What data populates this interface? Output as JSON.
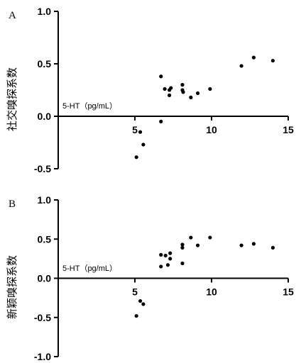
{
  "chart_data": [
    {
      "type": "scatter",
      "panel_label": "A",
      "ylabel": "社交嗅探系数",
      "xunit_label": "5-HT（pg/mL）",
      "xlim": [
        0,
        15
      ],
      "ylim": [
        -0.5,
        1.0
      ],
      "xticks": [
        "5",
        "10",
        "15"
      ],
      "yticks": [
        "1.0",
        "0.5",
        "0.0",
        "-0.5"
      ],
      "ytick_values": [
        1.0,
        0.5,
        0.0,
        -0.5
      ],
      "xtick_values": [
        5,
        10,
        15
      ],
      "series": [
        {
          "x": [
            5.1,
            5.35,
            5.55,
            6.7,
            6.7,
            6.95,
            7.25,
            7.35,
            7.25,
            8.1,
            8.1,
            8.15,
            8.65,
            9.1,
            9.9,
            11.95,
            12.75,
            14.0
          ],
          "y": [
            -0.39,
            -0.15,
            -0.27,
            0.38,
            -0.05,
            0.26,
            0.25,
            0.27,
            0.2,
            0.3,
            0.25,
            0.23,
            0.18,
            0.22,
            0.26,
            0.48,
            0.56,
            0.53
          ]
        }
      ]
    },
    {
      "type": "scatter",
      "panel_label": "B",
      "ylabel": "新颖嗅探系数",
      "xunit_label": "5-HT（pg/mL）",
      "xlim": [
        0,
        15
      ],
      "ylim": [
        -1.0,
        1.0
      ],
      "xticks": [
        "5",
        "10",
        "15"
      ],
      "yticks": [
        "1.0",
        "0.5",
        "0.0",
        "-0.5",
        "-1.0"
      ],
      "ytick_values": [
        1.0,
        0.5,
        0.0,
        -0.5,
        -1.0
      ],
      "xtick_values": [
        5,
        10,
        15
      ],
      "series": [
        {
          "x": [
            5.1,
            5.35,
            5.55,
            6.7,
            6.7,
            7.0,
            7.15,
            7.3,
            7.3,
            8.1,
            8.1,
            8.1,
            8.65,
            9.1,
            9.9,
            11.95,
            12.75,
            14.0
          ],
          "y": [
            -0.48,
            -0.29,
            -0.33,
            0.3,
            0.15,
            0.29,
            0.17,
            0.32,
            0.25,
            0.43,
            0.39,
            0.19,
            0.52,
            0.42,
            0.52,
            0.42,
            0.44,
            0.39
          ]
        }
      ]
    }
  ]
}
